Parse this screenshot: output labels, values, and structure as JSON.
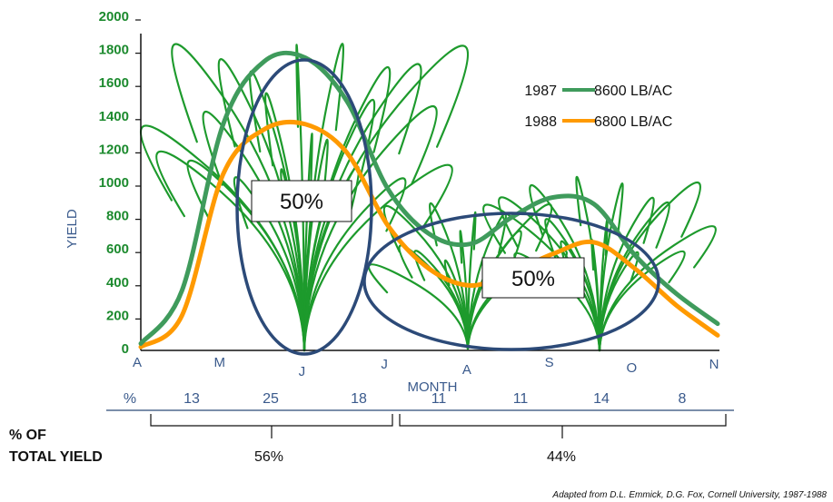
{
  "chart_data": {
    "type": "line",
    "ylabel": "YIELD",
    "xlabel": "MONTH",
    "ylim": [
      0,
      2000
    ],
    "yticks": [
      0,
      200,
      400,
      600,
      800,
      1000,
      1200,
      1400,
      1600,
      1800,
      2000
    ],
    "x_categories": [
      "A",
      "M",
      "J",
      "J",
      "A",
      "S",
      "O",
      "N"
    ],
    "series": [
      {
        "name": "1987",
        "legend_value": "8600 LB/AC",
        "color": "#3f9b5c",
        "x": [
          0,
          0.5,
          1,
          1.5,
          2,
          2.5,
          3,
          3.5,
          4,
          4.5,
          5,
          5.5,
          6,
          6.5,
          7
        ],
        "y": [
          30,
          350,
          1350,
          1730,
          1750,
          1490,
          960,
          690,
          630,
          790,
          910,
          870,
          560,
          330,
          150
        ]
      },
      {
        "name": "1988",
        "legend_value": "6800 LB/AC",
        "color": "#ff9a00",
        "x": [
          0,
          0.5,
          1,
          1.5,
          2,
          2.5,
          3,
          3.5,
          4,
          4.5,
          5,
          5.5,
          6,
          6.5,
          7
        ],
        "y": [
          10,
          200,
          1050,
          1320,
          1350,
          1180,
          740,
          480,
          380,
          460,
          570,
          640,
          480,
          260,
          80
        ]
      }
    ]
  },
  "legend": [
    {
      "year": "1987",
      "value": "8600 LB/AC",
      "color": "#3f9b5c"
    },
    {
      "year": "1988",
      "value": "6800 LB/AC",
      "color": "#ff9a00"
    }
  ],
  "callouts": [
    {
      "text": "50%"
    },
    {
      "text": "50%"
    }
  ],
  "percent_row": {
    "label": "%",
    "values": [
      "13",
      "25",
      "18",
      "11",
      "11",
      "14",
      "8"
    ]
  },
  "total_yield": {
    "label_line1": "% OF",
    "label_line2": "TOTAL YIELD",
    "groups": [
      "56%",
      "44%"
    ]
  },
  "source": "Adapted from D.L. Emmick, D.G. Fox, Cornell University, 1987-1988",
  "colors": {
    "axis_text": "#3a5a8c",
    "tick_text": "#1c8a2e",
    "ellipse": "#2c4a78",
    "grass": "#1d9a2c"
  }
}
